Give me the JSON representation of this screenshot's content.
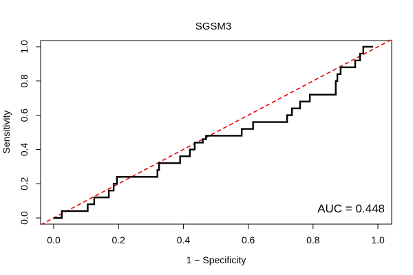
{
  "chart_data": {
    "type": "line",
    "title": "SGSM3",
    "xlabel": "1 − Specificity",
    "ylabel": "Sensitivity",
    "xlim": [
      0,
      1
    ],
    "ylim": [
      0,
      1
    ],
    "x_ticks": [
      0.0,
      0.2,
      0.4,
      0.6,
      0.8,
      1.0
    ],
    "x_tick_labels": [
      "0.0",
      "0.2",
      "0.4",
      "0.6",
      "0.8",
      "1.0"
    ],
    "y_ticks": [
      0.0,
      0.2,
      0.4,
      0.6,
      0.8,
      1.0
    ],
    "y_tick_labels": [
      "0.0",
      "0.2",
      "0.4",
      "0.6",
      "0.8",
      "1.0"
    ],
    "grid": false,
    "annotation": "AUC = 0.448",
    "reference_line": {
      "name": "chance",
      "color": "#e00000",
      "style": "dashed",
      "x": [
        0,
        1
      ],
      "y": [
        0,
        1
      ]
    },
    "series": [
      {
        "name": "ROC",
        "color": "#000000",
        "x": [
          0.0,
          0.02,
          0.025,
          0.025,
          0.105,
          0.105,
          0.125,
          0.125,
          0.17,
          0.17,
          0.185,
          0.185,
          0.195,
          0.195,
          0.32,
          0.32,
          0.325,
          0.325,
          0.39,
          0.39,
          0.42,
          0.42,
          0.435,
          0.435,
          0.46,
          0.46,
          0.47,
          0.47,
          0.58,
          0.58,
          0.615,
          0.615,
          0.72,
          0.72,
          0.735,
          0.735,
          0.76,
          0.76,
          0.79,
          0.79,
          0.87,
          0.87,
          0.875,
          0.875,
          0.885,
          0.885,
          0.9,
          0.9,
          0.93,
          0.93,
          0.945,
          0.945,
          0.955,
          0.955,
          0.985,
          0.985
        ],
        "y": [
          0.0,
          0.0,
          0.0,
          0.04,
          0.04,
          0.08,
          0.08,
          0.12,
          0.12,
          0.16,
          0.16,
          0.2,
          0.2,
          0.24,
          0.24,
          0.28,
          0.28,
          0.32,
          0.32,
          0.36,
          0.36,
          0.4,
          0.4,
          0.44,
          0.44,
          0.46,
          0.46,
          0.48,
          0.48,
          0.52,
          0.52,
          0.56,
          0.56,
          0.6,
          0.6,
          0.64,
          0.64,
          0.68,
          0.68,
          0.72,
          0.72,
          0.8,
          0.8,
          0.84,
          0.84,
          0.88,
          0.88,
          0.88,
          0.88,
          0.92,
          0.92,
          0.96,
          0.96,
          1.0,
          1.0,
          1.0
        ]
      }
    ]
  }
}
